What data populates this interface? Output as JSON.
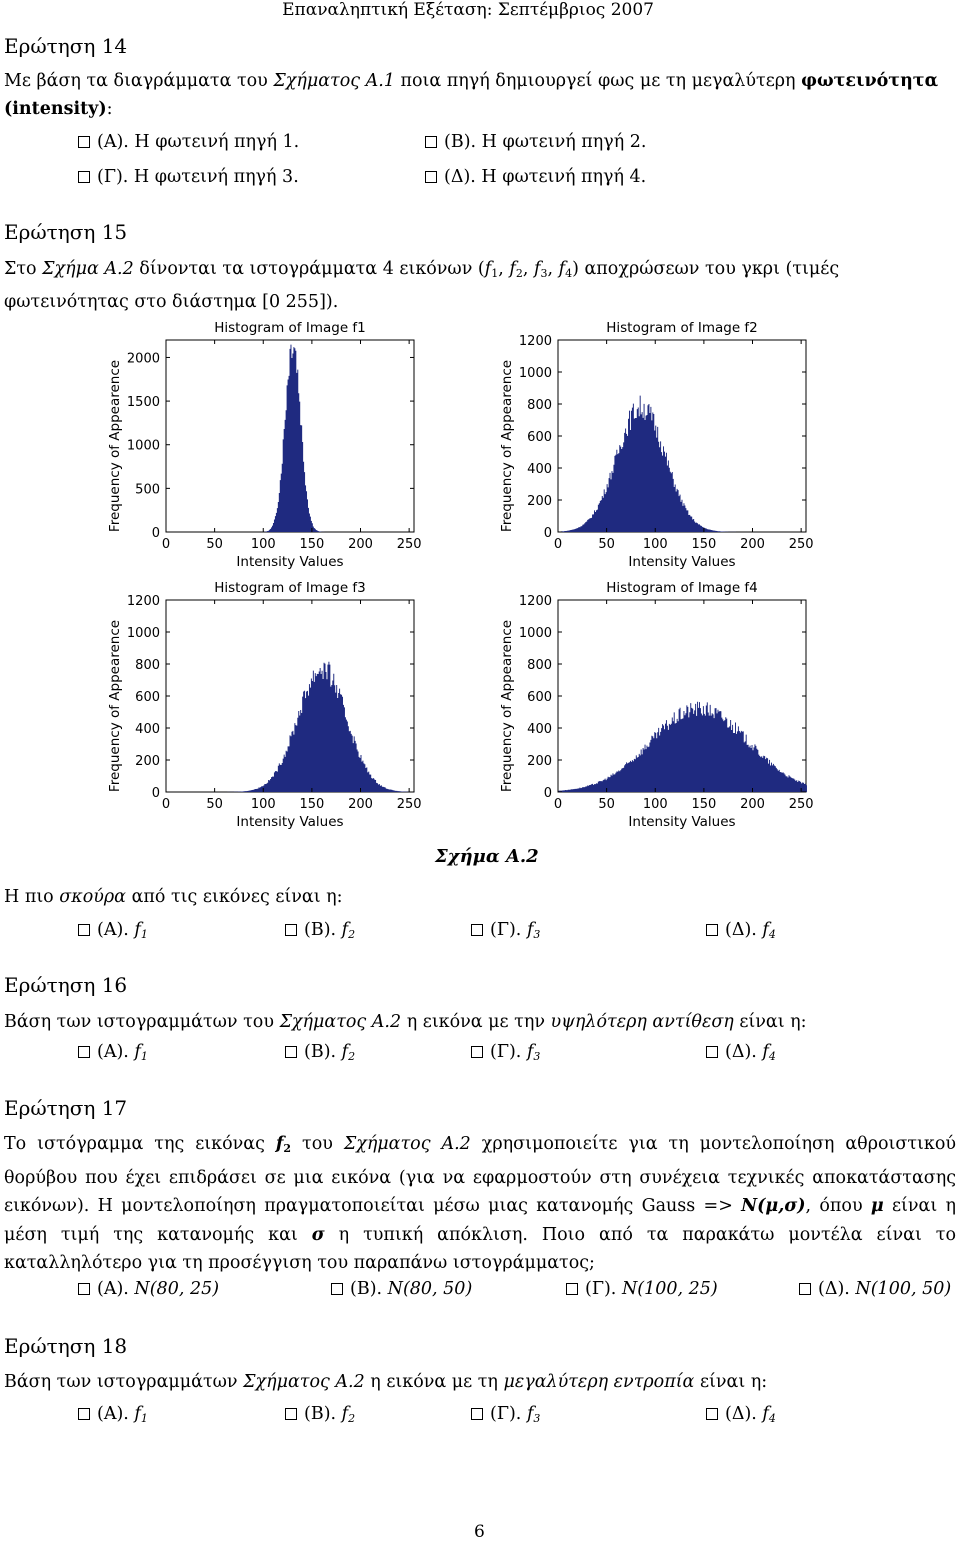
{
  "header": "Επαναληπτική Εξέταση: Σεπτέμβριος 2007",
  "q14": {
    "title": "Ερώτηση 14",
    "text_a": "Με βάση τα διαγράμματα του ",
    "text_b": "Σχήματος Α.1",
    "text_c": " ποια πηγή δημιουργεί φως με τη μεγαλύτερη ",
    "text_d": "φωτεινότητα",
    "text_e": "(intensity)",
    "text_f": ":",
    "options": [
      "(Α). Η φωτεινή πηγή 1.",
      "(Β). Η φωτεινή πηγή 2.",
      "(Γ). Η φωτεινή πηγή 3.",
      "(Δ). Η φωτεινή πηγή 4."
    ]
  },
  "q15": {
    "title": "Ερώτηση 15",
    "text_a": "Στο ",
    "text_b": "Σχήμα Α.2",
    "text_c": " δίνονται τα ιστογράμματα 4 εικόνων (",
    "f1": "f",
    "s1": "1",
    "f2": "f",
    "s2": "2",
    "f3": "f",
    "s3": "3",
    "f4": "f",
    "s4": "4",
    "sep": ", ",
    "text_d": ") αποχρώσεων του γκρι (τιμές",
    "text_e": "φωτεινότητας στο διάστημα [0 255]).",
    "question": "Η πιο ",
    "question_it": "σκούρα",
    "question_end": " από τις εικόνες είναι η:",
    "options": [
      {
        "label": "(Α). ",
        "f": "f",
        "sub": "1"
      },
      {
        "label": "(Β). ",
        "f": "f",
        "sub": "2"
      },
      {
        "label": "(Γ). ",
        "f": "f",
        "sub": "3"
      },
      {
        "label": "(Δ). ",
        "f": "f",
        "sub": "4"
      }
    ]
  },
  "figure_caption": "Σχήμα Α.2",
  "chart_data": [
    {
      "type": "bar",
      "title": "Histogram of Image f1",
      "xlabel": "Intensity Values",
      "ylabel": "Frequency of Appearence",
      "xlim": [
        0,
        255
      ],
      "ylim": [
        0,
        2200
      ],
      "xticks": [
        0,
        50,
        100,
        150,
        200,
        250
      ],
      "yticks": [
        0,
        500,
        1000,
        1500,
        2000
      ],
      "distribution": {
        "mean": 130,
        "std": 8,
        "peak": 2200
      },
      "color": "#1f2a80"
    },
    {
      "type": "bar",
      "title": "Histogram of Image f2",
      "xlabel": "Intensity Values",
      "ylabel": "Frequency of Appearence",
      "xlim": [
        0,
        255
      ],
      "ylim": [
        0,
        1200
      ],
      "xticks": [
        0,
        50,
        100,
        150,
        200,
        250
      ],
      "yticks": [
        0,
        200,
        400,
        600,
        800,
        1000,
        1200
      ],
      "distribution": {
        "mean": 85,
        "std": 25,
        "peak": 780
      },
      "color": "#1f2a80"
    },
    {
      "type": "bar",
      "title": "Histogram of Image f3",
      "xlabel": "Intensity Values",
      "ylabel": "Frequency of Appearence",
      "xlim": [
        0,
        255
      ],
      "ylim": [
        0,
        1200
      ],
      "xticks": [
        0,
        50,
        100,
        150,
        200,
        250
      ],
      "yticks": [
        0,
        200,
        400,
        600,
        800,
        1000,
        1200
      ],
      "distribution": {
        "mean": 160,
        "std": 25,
        "peak": 770
      },
      "color": "#1f2a80"
    },
    {
      "type": "bar",
      "title": "Histogram of Image f4",
      "xlabel": "Intensity Values",
      "ylabel": "Frequency of Appearence",
      "xlim": [
        0,
        255
      ],
      "ylim": [
        0,
        1200
      ],
      "xticks": [
        0,
        50,
        100,
        150,
        200,
        250
      ],
      "yticks": [
        0,
        200,
        400,
        600,
        800,
        1000,
        1200
      ],
      "distribution": {
        "mean": 145,
        "std": 50,
        "peak": 520
      },
      "color": "#1f2a80"
    }
  ],
  "q16": {
    "title": "Ερώτηση 16",
    "text_a": "Βάση των ιστογραμμάτων του ",
    "text_b": "Σχήματος Α.2",
    "text_c": " η εικόνα με την ",
    "text_d": "υψηλότερη αντίθεση",
    "text_e": " είναι η:",
    "options": [
      {
        "label": "(Α). ",
        "f": "f",
        "sub": "1"
      },
      {
        "label": "(Β). ",
        "f": "f",
        "sub": "2"
      },
      {
        "label": "(Γ). ",
        "f": "f",
        "sub": "3"
      },
      {
        "label": "(Δ). ",
        "f": "f",
        "sub": "4"
      }
    ]
  },
  "q17": {
    "title": "Ερώτηση 17",
    "t1": "Το ιστόγραμμα της εικόνας ",
    "t1_f": "f",
    "t1_sub": "2",
    "t2": " του ",
    "t3": "Σχήματος Α.2",
    "t4": " χρησιμοποιείτε για τη μοντελοποίηση αθροιστικού θορύβου που έχει επιδράσει σε μια εικόνα (για να εφαρμοστούν στη συνέχεια τεχνικές αποκατάστασης εικόνων). Η μοντελοποίηση πραγματοποιείται μέσω μιας κατανομής Gauss => ",
    "t5": "N(μ,σ)",
    "t6": ", όπου ",
    "t7": "μ",
    "t8": " είναι η μέση τιμή της κατανομής και ",
    "t9": "σ",
    "t10": " η τυπική απόκλιση. Ποιο από τα παρακάτω μοντέλα είναι το καταλληλότερο για τη προσέγγιση του παραπάνω ιστογράμματος;",
    "options": [
      {
        "label": "(Α). ",
        "val": "N(80, 25)"
      },
      {
        "label": "(Β). ",
        "val": "N(80, 50)"
      },
      {
        "label": "(Γ). ",
        "val": "N(100, 25)"
      },
      {
        "label": "(Δ). ",
        "val": "N(100, 50)"
      }
    ]
  },
  "q18": {
    "title": "Ερώτηση 18",
    "text_a": "Βάση των ιστογραμμάτων ",
    "text_b": "Σχήματος Α.2",
    "text_c": " η εικόνα με τη ",
    "text_d": "μεγαλύτερη εντροπία",
    "text_e": " είναι η:",
    "options": [
      {
        "label": "(Α). ",
        "f": "f",
        "sub": "1"
      },
      {
        "label": "(Β). ",
        "f": "f",
        "sub": "2"
      },
      {
        "label": "(Γ). ",
        "f": "f",
        "sub": "3"
      },
      {
        "label": "(Δ). ",
        "f": "f",
        "sub": "4"
      }
    ]
  },
  "page_number": "6"
}
